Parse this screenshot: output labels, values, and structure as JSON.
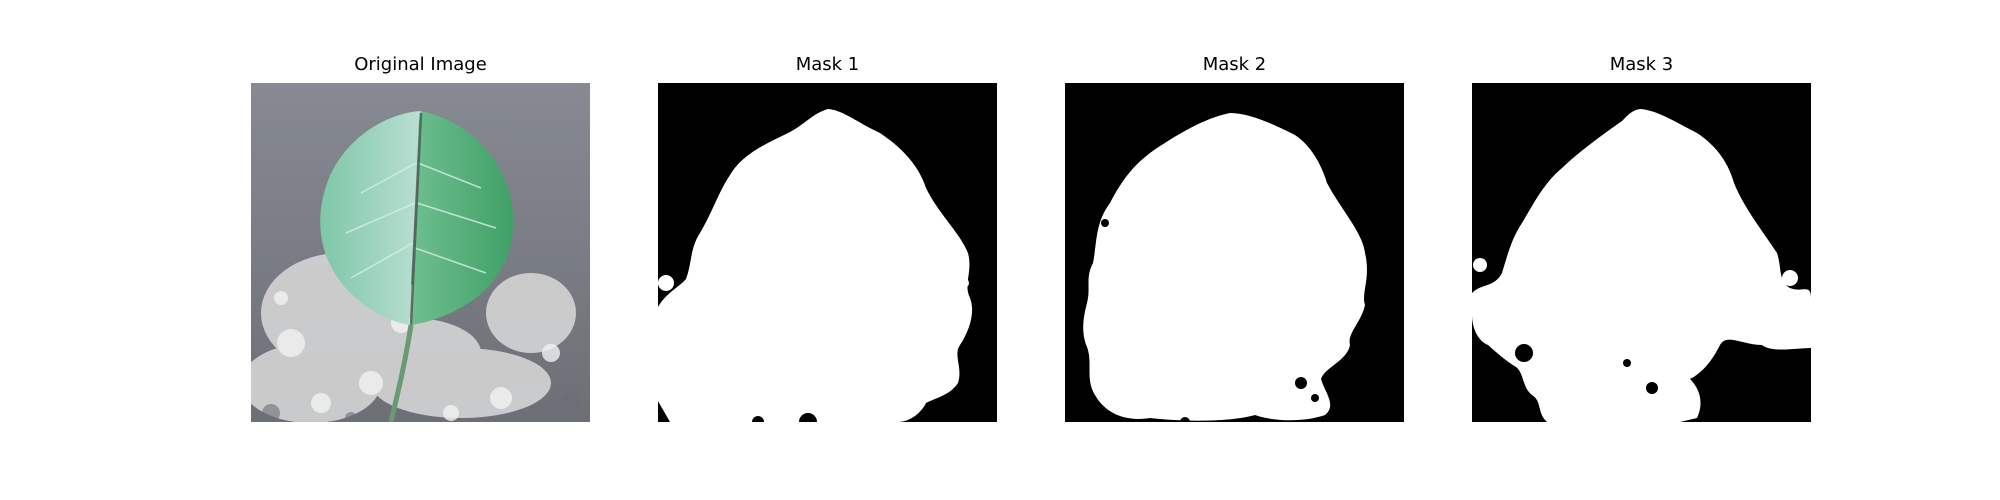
{
  "panels": [
    {
      "title": "Original Image"
    },
    {
      "title": "Mask 1"
    },
    {
      "title": "Mask 2"
    },
    {
      "title": "Mask 3"
    }
  ],
  "colors": {
    "background": "#ffffff",
    "mask_background": "#000000",
    "mask_foreground": "#ffffff",
    "table_surface": "#8a8d95",
    "leaf_green": "#5fb58b",
    "leaf_light": "#a9d8c6",
    "powder_white": "#e6e6e6",
    "stem": "#6a9a72"
  }
}
